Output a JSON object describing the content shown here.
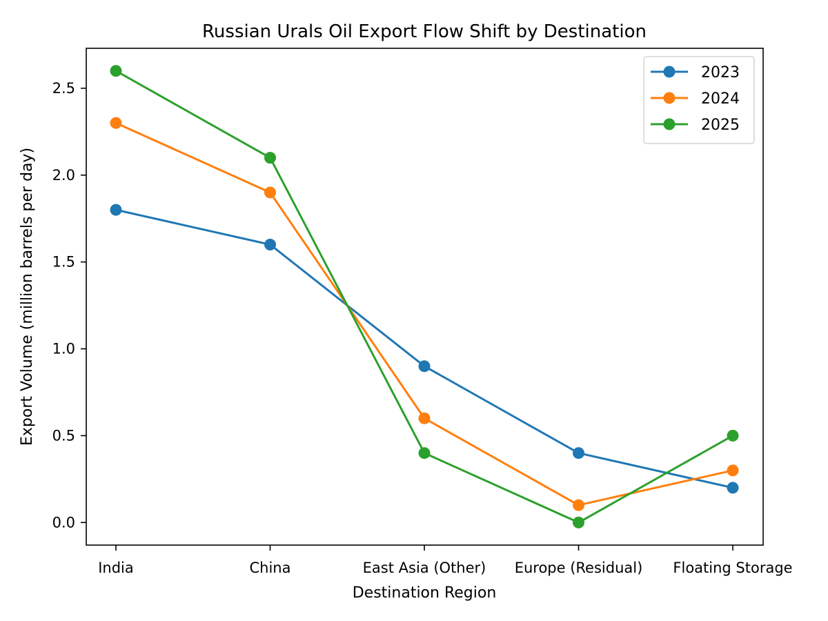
{
  "chart_data": {
    "type": "line",
    "title": "Russian Urals Oil Export Flow Shift by Destination",
    "xlabel": "Destination Region",
    "ylabel": "Export Volume (million barrels per day)",
    "categories": [
      "India",
      "China",
      "East Asia (Other)",
      "Europe (Residual)",
      "Floating Storage"
    ],
    "ylim": [
      -0.13,
      2.73
    ],
    "yticks": [
      0.0,
      0.5,
      1.0,
      1.5,
      2.0,
      2.5
    ],
    "ytick_labels": [
      "0.0",
      "0.5",
      "1.0",
      "1.5",
      "2.0",
      "2.5"
    ],
    "grid": false,
    "legend_position": "top-right",
    "series": [
      {
        "name": "2023",
        "color": "#1f77b4",
        "values": [
          1.8,
          1.6,
          0.9,
          0.4,
          0.2
        ]
      },
      {
        "name": "2024",
        "color": "#ff7f0e",
        "values": [
          2.3,
          1.9,
          0.6,
          0.1,
          0.3
        ]
      },
      {
        "name": "2025",
        "color": "#2ca02c",
        "values": [
          2.6,
          2.1,
          0.4,
          0.0,
          0.5
        ]
      }
    ]
  }
}
